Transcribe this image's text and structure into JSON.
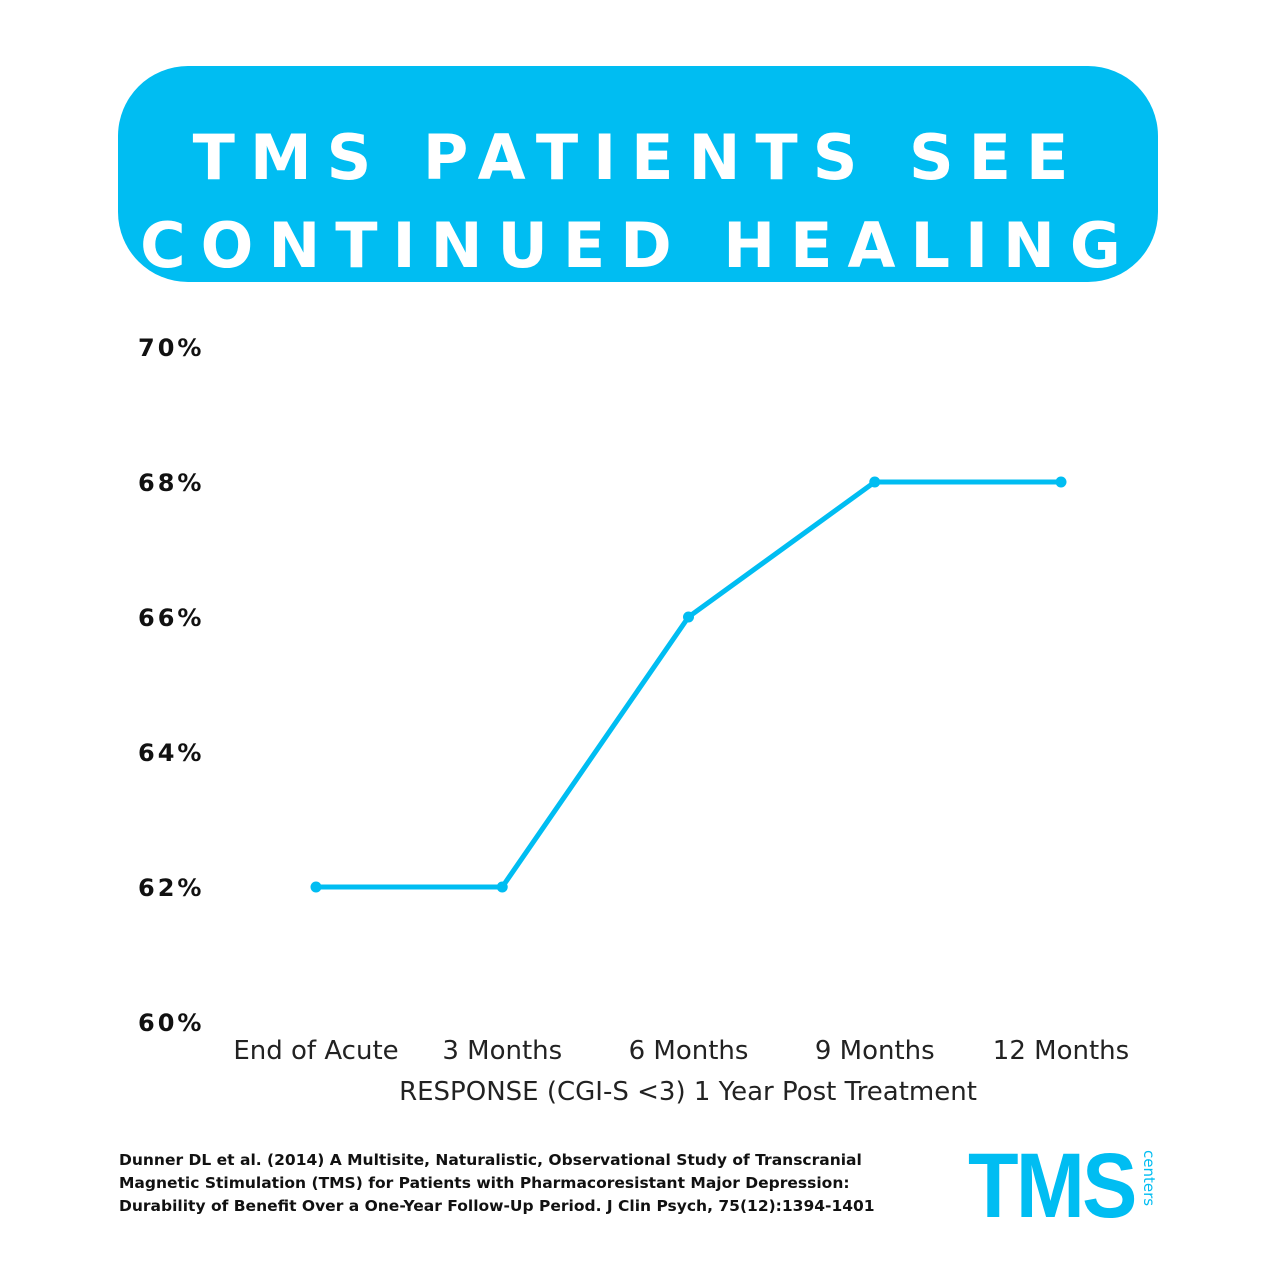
{
  "banner": {
    "line1": "TMS PATIENTS SEE",
    "line2": "CONTINUED HEALING"
  },
  "chart_data": {
    "type": "line",
    "categories": [
      "End of Acute",
      "3 Months",
      "6 Months",
      "9 Months",
      "12 Months"
    ],
    "values": [
      62,
      62,
      66,
      68,
      68
    ],
    "xlabel": "RESPONSE (CGI-S <3) 1 Year Post Treatment",
    "ylabel": "",
    "ylim": [
      60,
      70
    ],
    "yticks": [
      "60%",
      "62%",
      "64%",
      "66%",
      "68%",
      "70%"
    ],
    "grid": false,
    "color": "#00bdf2"
  },
  "citation": "Dunner DL et al. (2014) A Multisite, Naturalistic, Observational Study of Transcranial Magnetic Stimulation (TMS) for Patients with Pharmacoresistant Major Depression: Durability of Benefit Over a One-Year Follow-Up Period. J Clin Psych, 75(12):1394-1401",
  "logo": {
    "main": "TMS",
    "sub": "centers"
  }
}
